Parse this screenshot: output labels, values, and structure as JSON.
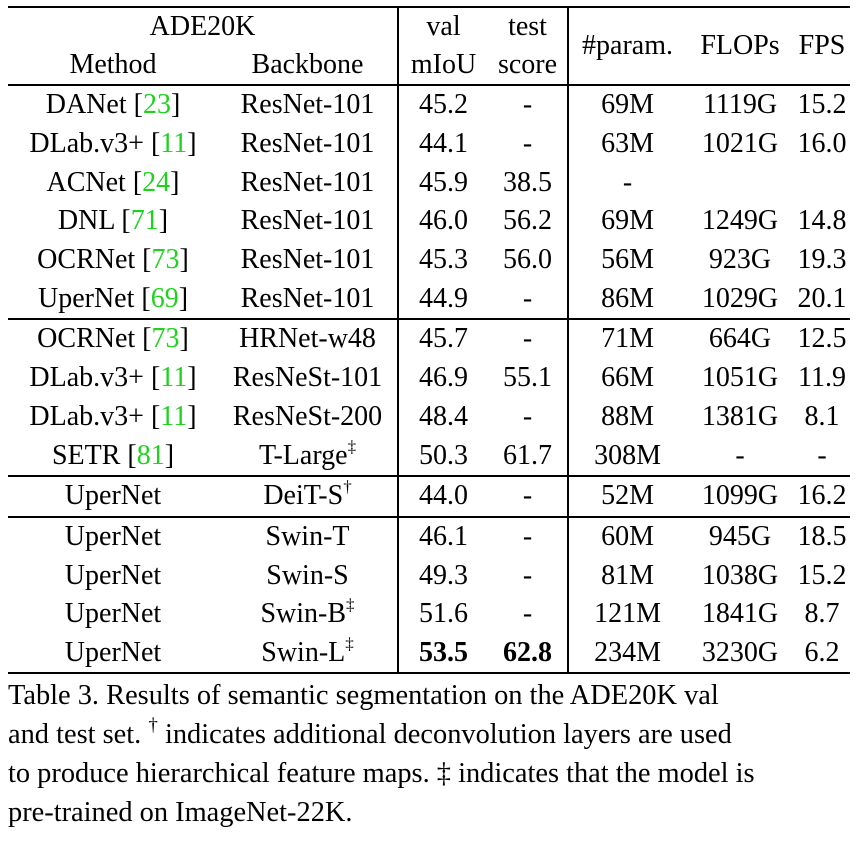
{
  "header": {
    "dataset": "ADE20K",
    "method": "Method",
    "backbone": "Backbone",
    "val_top": "val",
    "val_bottom": "mIoU",
    "test_top": "test",
    "test_bottom": "score",
    "params": "#param.",
    "flops": "FLOPs",
    "fps": "FPS"
  },
  "groups": [
    [
      {
        "method": "DANet",
        "ref": "23",
        "backbone": "ResNet-101",
        "mark": "",
        "val": "45.2",
        "test": "-",
        "params": "69M",
        "flops": "1119G",
        "fps": "15.2"
      },
      {
        "method": "DLab.v3+",
        "ref": "11",
        "backbone": "ResNet-101",
        "mark": "",
        "val": "44.1",
        "test": "-",
        "params": "63M",
        "flops": "1021G",
        "fps": "16.0"
      },
      {
        "method": "ACNet",
        "ref": "24",
        "backbone": "ResNet-101",
        "mark": "",
        "val": "45.9",
        "test": "38.5",
        "params": "-",
        "flops": "",
        "fps": ""
      },
      {
        "method": "DNL",
        "ref": "71",
        "backbone": "ResNet-101",
        "mark": "",
        "val": "46.0",
        "test": "56.2",
        "params": "69M",
        "flops": "1249G",
        "fps": "14.8"
      },
      {
        "method": "OCRNet",
        "ref": "73",
        "backbone": "ResNet-101",
        "mark": "",
        "val": "45.3",
        "test": "56.0",
        "params": "56M",
        "flops": "923G",
        "fps": "19.3"
      },
      {
        "method": "UperNet",
        "ref": "69",
        "backbone": "ResNet-101",
        "mark": "",
        "val": "44.9",
        "test": "-",
        "params": "86M",
        "flops": "1029G",
        "fps": "20.1"
      }
    ],
    [
      {
        "method": "OCRNet",
        "ref": "73",
        "backbone": "HRNet-w48",
        "mark": "",
        "val": "45.7",
        "test": "-",
        "params": "71M",
        "flops": "664G",
        "fps": "12.5"
      },
      {
        "method": "DLab.v3+",
        "ref": "11",
        "backbone": "ResNeSt-101",
        "mark": "",
        "val": "46.9",
        "test": "55.1",
        "params": "66M",
        "flops": "1051G",
        "fps": "11.9"
      },
      {
        "method": "DLab.v3+",
        "ref": "11",
        "backbone": "ResNeSt-200",
        "mark": "",
        "val": "48.4",
        "test": "-",
        "params": "88M",
        "flops": "1381G",
        "fps": "8.1"
      },
      {
        "method": "SETR",
        "ref": "81",
        "backbone": "T-Large",
        "mark": "‡",
        "val": "50.3",
        "test": "61.7",
        "params": "308M",
        "flops": "-",
        "fps": "-"
      }
    ],
    [
      {
        "method": "UperNet",
        "ref": "",
        "backbone": "DeiT-S",
        "mark": "†",
        "val": "44.0",
        "test": "-",
        "params": "52M",
        "flops": "1099G",
        "fps": "16.2"
      }
    ],
    [
      {
        "method": "UperNet",
        "ref": "",
        "backbone": "Swin-T",
        "mark": "",
        "val": "46.1",
        "test": "-",
        "params": "60M",
        "flops": "945G",
        "fps": "18.5"
      },
      {
        "method": "UperNet",
        "ref": "",
        "backbone": "Swin-S",
        "mark": "",
        "val": "49.3",
        "test": "-",
        "params": "81M",
        "flops": "1038G",
        "fps": "15.2"
      },
      {
        "method": "UperNet",
        "ref": "",
        "backbone": "Swin-B",
        "mark": "‡",
        "val": "51.6",
        "test": "-",
        "params": "121M",
        "flops": "1841G",
        "fps": "8.7"
      },
      {
        "method": "UperNet",
        "ref": "",
        "backbone": "Swin-L",
        "mark": "‡",
        "val": "53.5",
        "test": "62.8",
        "params": "234M",
        "flops": "3230G",
        "fps": "6.2",
        "bold": true
      }
    ]
  ],
  "caption": {
    "line1": "Table 3. Results of semantic segmentation on the ADE20K val",
    "line2a": "and test set.",
    "dagger": "†",
    "line2b": "indicates additional deconvolution layers are used",
    "line3": "to produce hierarchical feature maps. ‡ indicates that the model is",
    "line4": "pre-trained on ImageNet-22K."
  }
}
